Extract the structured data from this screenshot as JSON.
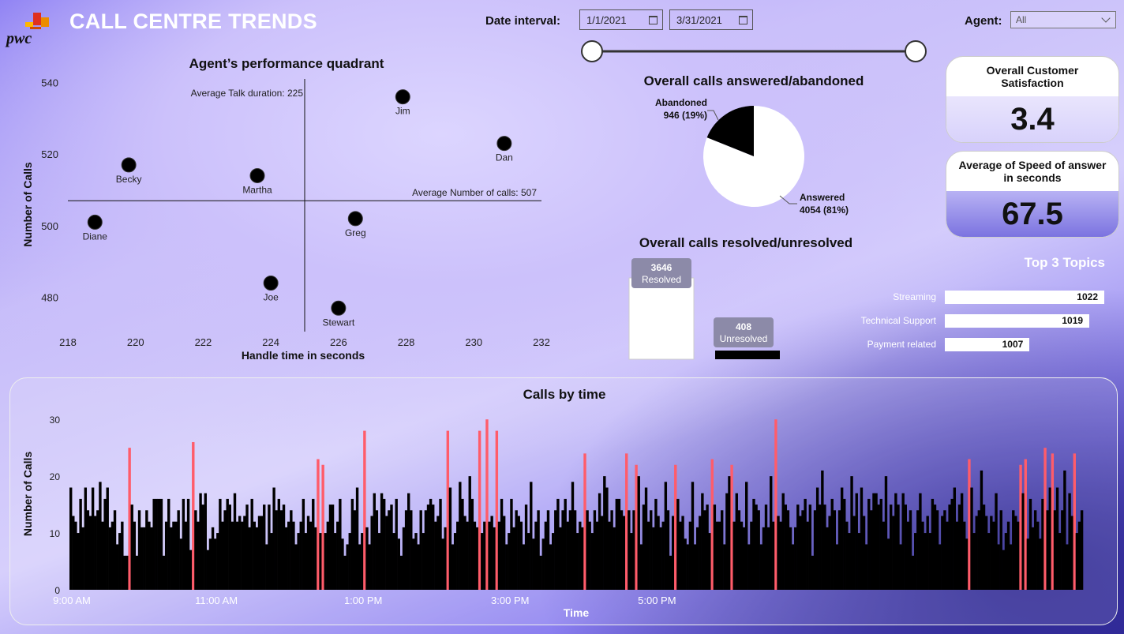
{
  "header": {
    "logo_text": "pwc",
    "title": "CALL CENTRE TRENDS",
    "date_label": "Date interval:",
    "date_start": "1/1/2021",
    "date_end": "3/31/2021",
    "agent_label": "Agent:",
    "agent_value": "All",
    "slider_start": 0,
    "slider_end": 1
  },
  "kpis": {
    "satisfaction_label": "Overall Customer Satisfaction",
    "satisfaction_value": "3.4",
    "speed_label": "Average of Speed of answer in seconds",
    "speed_value": "67.5"
  },
  "topics": {
    "title": "Top 3 Topics",
    "items": [
      {
        "label": "Streaming",
        "value": 1022
      },
      {
        "label": "Technical Support",
        "value": 1019
      },
      {
        "label": "Payment related",
        "value": 1007
      }
    ]
  },
  "colors": {
    "dot": "#000000",
    "pie_answered": "#ffffff",
    "pie_abandoned": "#000000",
    "bar_normal": "#000000",
    "bar_peak": "#ff5c6a",
    "topic_bar": "#ffffff"
  },
  "chart_data": [
    {
      "type": "scatter",
      "title": "Agent’s performance quadrant",
      "xlabel": "Handle time in seconds",
      "ylabel": "Number of Calls",
      "xlim": [
        218,
        232
      ],
      "ylim": [
        470,
        541
      ],
      "xticks": [
        "218",
        "220",
        "222",
        "224",
        "226",
        "228",
        "230",
        "232"
      ],
      "yticks": [
        "480",
        "500",
        "520",
        "540"
      ],
      "points": [
        {
          "label": "Jim",
          "x": 227.9,
          "y": 536
        },
        {
          "label": "Dan",
          "x": 230.9,
          "y": 523
        },
        {
          "label": "Becky",
          "x": 219.8,
          "y": 517
        },
        {
          "label": "Martha",
          "x": 223.6,
          "y": 514
        },
        {
          "label": "Greg",
          "x": 226.5,
          "y": 502
        },
        {
          "label": "Diane",
          "x": 218.8,
          "y": 501
        },
        {
          "label": "Joe",
          "x": 224.0,
          "y": 484
        },
        {
          "label": "Stewart",
          "x": 226.0,
          "y": 477
        }
      ],
      "ref_x": {
        "value": 225,
        "label": "Average Talk duration: 225"
      },
      "ref_y": {
        "value": 507,
        "label": "Average Number of calls: 507"
      }
    },
    {
      "type": "pie",
      "title": "Overall calls answered/abandoned",
      "slices": [
        {
          "label": "Answered",
          "value": 4054,
          "pct": "81%",
          "display": "4054 (81%)"
        },
        {
          "label": "Abandoned",
          "value": 946,
          "pct": "19%",
          "display": "946 (19%)"
        }
      ]
    },
    {
      "type": "bar",
      "title": "Overall calls resolved/unresolved",
      "categories": [
        "Resolved",
        "Unresolved"
      ],
      "values": [
        3646,
        408
      ]
    },
    {
      "type": "bar",
      "title": "Calls by time",
      "xlabel": "Time",
      "ylabel": "Number of Calls",
      "ylim": [
        0,
        31
      ],
      "yticks": [
        "0",
        "10",
        "20",
        "30"
      ],
      "xticks": [
        "9:00 AM",
        "11:00 AM",
        "1:00 PM",
        "3:00 PM",
        "5:00 PM"
      ],
      "start_minutes": 540,
      "interval_minutes": 2,
      "values": [
        18,
        13,
        12,
        10,
        16,
        11,
        18,
        14,
        13,
        18,
        13,
        14,
        19,
        12,
        16,
        18,
        11,
        12,
        14,
        8,
        10,
        12,
        6,
        6,
        25,
        15,
        12,
        6,
        14,
        11,
        11,
        14,
        12,
        11,
        16,
        16,
        16,
        16,
        6,
        12,
        16,
        11,
        12,
        12,
        14,
        9,
        16,
        12,
        16,
        7,
        26,
        14,
        12,
        17,
        15,
        17,
        7,
        9,
        11,
        9,
        10,
        16,
        12,
        14,
        16,
        15,
        12,
        17,
        12,
        13,
        12,
        13,
        15,
        11,
        16,
        12,
        11,
        13,
        13,
        15,
        8,
        15,
        10,
        18,
        14,
        16,
        14,
        15,
        11,
        12,
        14,
        12,
        8,
        10,
        12,
        16,
        10,
        13,
        12,
        16,
        11,
        23,
        10,
        22,
        10,
        12,
        15,
        15,
        10,
        12,
        16,
        9,
        6,
        8,
        10,
        16,
        14,
        18,
        8,
        10,
        28,
        11,
        8,
        13,
        17,
        14,
        10,
        17,
        16,
        13,
        14,
        15,
        10,
        16,
        9,
        6,
        11,
        14,
        17,
        14,
        9,
        10,
        8,
        14,
        10,
        14,
        15,
        16,
        15,
        12,
        13,
        16,
        9,
        11,
        28,
        18,
        8,
        10,
        12,
        19,
        16,
        13,
        12,
        20,
        16,
        12,
        11,
        28,
        10,
        12,
        30,
        12,
        13,
        11,
        28,
        12,
        16,
        13,
        8,
        10,
        16,
        11,
        14,
        13,
        12,
        8,
        15,
        10,
        19,
        9,
        12,
        14,
        6,
        9,
        12,
        14,
        8,
        10,
        14,
        16,
        11,
        14,
        16,
        12,
        14,
        19,
        14,
        10,
        12,
        11,
        24,
        14,
        12,
        10,
        14,
        12,
        17,
        13,
        20,
        18,
        12,
        14,
        11,
        16,
        16,
        14,
        13,
        24,
        14,
        10,
        14,
        22,
        20,
        8,
        15,
        18,
        12,
        14,
        11,
        16,
        13,
        11,
        12,
        19,
        14,
        6,
        13,
        22,
        16,
        12,
        13,
        9,
        8,
        12,
        19,
        8,
        11,
        13,
        17,
        14,
        15,
        10,
        23,
        15,
        12,
        12,
        14,
        8,
        17,
        20,
        22,
        12,
        17,
        14,
        12,
        11,
        19,
        8,
        12,
        16,
        15,
        14,
        8,
        11,
        15,
        11,
        20,
        12,
        30,
        13,
        12,
        17,
        15,
        14,
        11,
        8,
        11,
        15,
        13,
        14,
        16,
        12,
        15,
        6,
        14,
        18,
        15,
        21,
        15,
        11,
        13,
        16,
        14,
        8,
        14,
        18,
        16,
        12,
        10,
        20,
        13,
        17,
        10,
        18,
        13,
        8,
        16,
        14,
        17,
        17,
        15,
        16,
        12,
        20,
        9,
        15,
        13,
        17,
        15,
        8,
        17,
        15,
        12,
        14,
        6,
        10,
        14,
        17,
        12,
        10,
        13,
        10,
        16,
        15,
        14,
        8,
        13,
        14,
        12,
        15,
        16,
        18,
        12,
        15,
        17,
        12,
        9,
        23,
        18,
        10,
        13,
        14,
        21,
        15,
        13,
        10,
        13,
        12,
        17,
        8,
        14,
        7,
        10,
        12,
        8,
        14,
        13,
        12,
        22,
        17,
        23,
        9,
        16,
        11,
        14,
        12,
        9,
        16,
        25,
        14,
        18,
        24,
        14,
        18,
        10,
        14,
        21,
        8,
        17,
        13,
        24,
        10,
        12,
        14
      ]
    }
  ]
}
